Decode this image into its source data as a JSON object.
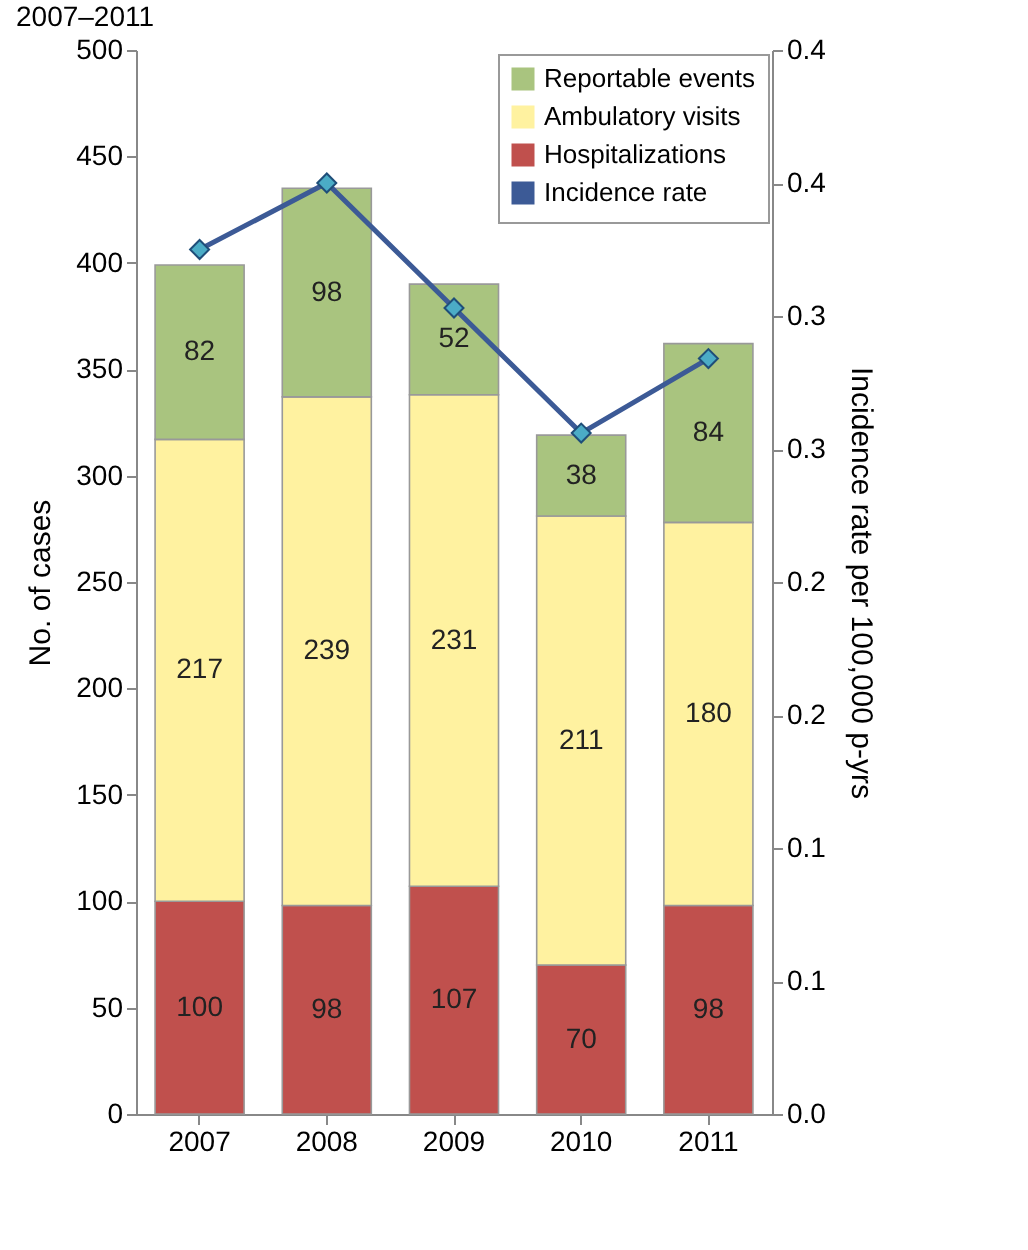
{
  "chart_data": {
    "type": "bar",
    "title": "2007–2011",
    "categories": [
      "2007",
      "2008",
      "2009",
      "2010",
      "2011"
    ],
    "stacked": true,
    "ylabel": "No. of cases",
    "y2label": "Incidence rate per 100,000 p-yrs",
    "ylim": [
      0,
      500
    ],
    "yticks": [
      0,
      50,
      100,
      150,
      200,
      250,
      300,
      350,
      400,
      450,
      500
    ],
    "y2lim": [
      0,
      0.4
    ],
    "y2ticks": [
      {
        "value": 0,
        "label": "0.0"
      },
      {
        "value": 0.05,
        "label": "0.1"
      },
      {
        "value": 0.1,
        "label": "0.1"
      },
      {
        "value": 0.15,
        "label": "0.2"
      },
      {
        "value": 0.2,
        "label": "0.2"
      },
      {
        "value": 0.25,
        "label": "0.3"
      },
      {
        "value": 0.3,
        "label": "0.3"
      },
      {
        "value": 0.35,
        "label": "0.4"
      },
      {
        "value": 0.4,
        "label": "0.4"
      }
    ],
    "legend": "top right",
    "grid": false,
    "marker": "diamond",
    "line_style": "solid",
    "series": [
      {
        "name": "Hospitalizations",
        "color": "#c0504d",
        "values": [
          100,
          98,
          107,
          70,
          98
        ],
        "value_labels": [
          "100",
          "98",
          "107",
          "70",
          "98"
        ]
      },
      {
        "name": "Ambulatory visits",
        "color": "#fff2a0",
        "values": [
          217,
          239,
          231,
          211,
          180
        ],
        "value_labels": [
          "217",
          "239",
          "231",
          "211",
          "180"
        ]
      },
      {
        "name": "Reportable events",
        "color": "#a9c47f",
        "values": [
          82,
          98,
          52,
          38,
          84
        ],
        "value_labels": [
          "82",
          "98",
          "52",
          "38",
          "84"
        ]
      },
      {
        "name": "Incidence rate",
        "type": "line",
        "axis": "y2",
        "color": "#3c5a96",
        "values": [
          0.325,
          0.35,
          0.303,
          0.256,
          0.284
        ]
      }
    ]
  }
}
